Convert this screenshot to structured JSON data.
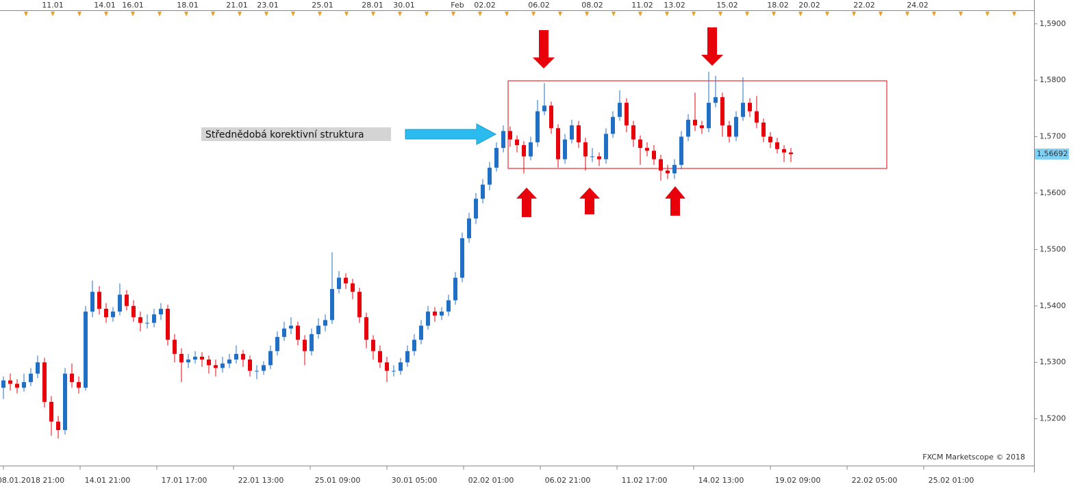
{
  "chart_data": {
    "type": "candlestick",
    "annotation": "Střednědobá korektivní struktura",
    "credit": "FXCM Marketscope © 2018",
    "top_labels": [
      "11.01",
      "14.01",
      "16.01",
      "18.01",
      "21.01",
      "23.01",
      "25.01",
      "28.01",
      "30.01",
      "Feb",
      "02.02",
      "06.02",
      "08.02",
      "11.02",
      "13.02",
      "15.02",
      "18.02",
      "20.02",
      "22.02",
      "24.02"
    ],
    "bottom_labels": [
      "08.01.2018 21:00",
      "14.01 21:00",
      "17.01 17:00",
      "22.01 13:00",
      "25.01 09:00",
      "30.01 05:00",
      "02.02 01:00",
      "06.02 21:00",
      "11.02 17:00",
      "14.02 13:00",
      "19.02 09:00",
      "22.02 05:00",
      "25.02 01:00"
    ],
    "ylim": [
      1.5117,
      1.5924
    ],
    "yticks": [
      {
        "value": 1.59,
        "label": "1,5900"
      },
      {
        "value": 1.58,
        "label": "1,5800"
      },
      {
        "value": 1.57,
        "label": "1,5700"
      },
      {
        "value": 1.56,
        "label": "1,5600"
      },
      {
        "value": 1.55,
        "label": "1,5500"
      },
      {
        "value": 1.54,
        "label": "1,5400"
      },
      {
        "value": 1.53,
        "label": "1,5300"
      },
      {
        "value": 1.52,
        "label": "1,5200"
      }
    ],
    "last_price": {
      "value": 1.56692,
      "label": "1,56692"
    },
    "up_color": "#1f6fc5",
    "down_color": "#e8000b",
    "candles": [
      [
        1.5255,
        1.5275,
        1.5235,
        1.5268
      ],
      [
        1.5268,
        1.528,
        1.525,
        1.5262
      ],
      [
        1.5262,
        1.527,
        1.5245,
        1.5255
      ],
      [
        1.5255,
        1.528,
        1.5248,
        1.5265
      ],
      [
        1.5265,
        1.529,
        1.5258,
        1.528
      ],
      [
        1.528,
        1.5312,
        1.5272,
        1.53
      ],
      [
        1.53,
        1.5308,
        1.522,
        1.523
      ],
      [
        1.523,
        1.524,
        1.517,
        1.5195
      ],
      [
        1.5195,
        1.5205,
        1.5165,
        1.518
      ],
      [
        1.518,
        1.529,
        1.5172,
        1.528
      ],
      [
        1.528,
        1.5298,
        1.5255,
        1.5265
      ],
      [
        1.5265,
        1.5275,
        1.5245,
        1.5255
      ],
      [
        1.5255,
        1.54,
        1.525,
        1.539
      ],
      [
        1.539,
        1.5445,
        1.538,
        1.5425
      ],
      [
        1.5425,
        1.5435,
        1.5385,
        1.5395
      ],
      [
        1.5395,
        1.5405,
        1.537,
        1.538
      ],
      [
        1.538,
        1.5398,
        1.5372,
        1.539
      ],
      [
        1.539,
        1.544,
        1.5383,
        1.542
      ],
      [
        1.542,
        1.5428,
        1.5392,
        1.54
      ],
      [
        1.54,
        1.541,
        1.5372,
        1.538
      ],
      [
        1.538,
        1.539,
        1.5355,
        1.537
      ],
      [
        1.537,
        1.5385,
        1.536,
        1.537
      ],
      [
        1.537,
        1.5395,
        1.5362,
        1.5385
      ],
      [
        1.5385,
        1.5405,
        1.5375,
        1.5395
      ],
      [
        1.5395,
        1.5402,
        1.533,
        1.534
      ],
      [
        1.534,
        1.535,
        1.53,
        1.5315
      ],
      [
        1.5315,
        1.5325,
        1.5265,
        1.53
      ],
      [
        1.53,
        1.5315,
        1.529,
        1.5305
      ],
      [
        1.5305,
        1.532,
        1.5298,
        1.531
      ],
      [
        1.531,
        1.5318,
        1.5292,
        1.5305
      ],
      [
        1.5305,
        1.5312,
        1.528,
        1.5295
      ],
      [
        1.5295,
        1.5305,
        1.5275,
        1.529
      ],
      [
        1.529,
        1.531,
        1.5282,
        1.5298
      ],
      [
        1.5298,
        1.5315,
        1.529,
        1.5305
      ],
      [
        1.5305,
        1.533,
        1.5298,
        1.5315
      ],
      [
        1.5315,
        1.5322,
        1.5292,
        1.5305
      ],
      [
        1.5305,
        1.5312,
        1.5275,
        1.5285
      ],
      [
        1.5285,
        1.5295,
        1.527,
        1.5285
      ],
      [
        1.5285,
        1.5302,
        1.5278,
        1.5295
      ],
      [
        1.5295,
        1.533,
        1.5288,
        1.532
      ],
      [
        1.532,
        1.5355,
        1.5312,
        1.5345
      ],
      [
        1.5345,
        1.5372,
        1.5338,
        1.536
      ],
      [
        1.536,
        1.538,
        1.535,
        1.5365
      ],
      [
        1.5365,
        1.5372,
        1.533,
        1.534
      ],
      [
        1.534,
        1.5348,
        1.5295,
        1.532
      ],
      [
        1.532,
        1.536,
        1.5312,
        1.535
      ],
      [
        1.535,
        1.5378,
        1.5342,
        1.5365
      ],
      [
        1.5365,
        1.5385,
        1.5355,
        1.5375
      ],
      [
        1.5375,
        1.5495,
        1.5368,
        1.543
      ],
      [
        1.543,
        1.5462,
        1.5422,
        1.545
      ],
      [
        1.545,
        1.5458,
        1.543,
        1.544
      ],
      [
        1.544,
        1.5448,
        1.5412,
        1.5425
      ],
      [
        1.5425,
        1.5432,
        1.537,
        1.538
      ],
      [
        1.538,
        1.5388,
        1.5325,
        1.534
      ],
      [
        1.534,
        1.5348,
        1.5305,
        1.532
      ],
      [
        1.532,
        1.533,
        1.529,
        1.53
      ],
      [
        1.53,
        1.531,
        1.5265,
        1.5285
      ],
      [
        1.5285,
        1.5295,
        1.5275,
        1.5285
      ],
      [
        1.5285,
        1.5308,
        1.5278,
        1.53
      ],
      [
        1.53,
        1.533,
        1.5292,
        1.532
      ],
      [
        1.532,
        1.535,
        1.5312,
        1.534
      ],
      [
        1.534,
        1.5375,
        1.5332,
        1.5365
      ],
      [
        1.5365,
        1.54,
        1.5358,
        1.539
      ],
      [
        1.539,
        1.5398,
        1.5372,
        1.5383
      ],
      [
        1.5383,
        1.5398,
        1.5375,
        1.539
      ],
      [
        1.539,
        1.542,
        1.5382,
        1.541
      ],
      [
        1.541,
        1.546,
        1.5402,
        1.545
      ],
      [
        1.545,
        1.553,
        1.5442,
        1.552
      ],
      [
        1.552,
        1.5565,
        1.5512,
        1.5555
      ],
      [
        1.5555,
        1.56,
        1.5545,
        1.559
      ],
      [
        1.559,
        1.5625,
        1.5582,
        1.5615
      ],
      [
        1.5615,
        1.5655,
        1.5605,
        1.5645
      ],
      [
        1.5645,
        1.569,
        1.5638,
        1.568
      ],
      [
        1.568,
        1.572,
        1.5672,
        1.571
      ],
      [
        1.571,
        1.5718,
        1.5682,
        1.5695
      ],
      [
        1.5695,
        1.5702,
        1.5672,
        1.5685
      ],
      [
        1.5685,
        1.5692,
        1.5635,
        1.5665
      ],
      [
        1.5665,
        1.57,
        1.5658,
        1.569
      ],
      [
        1.569,
        1.5765,
        1.5682,
        1.5745
      ],
      [
        1.5745,
        1.5795,
        1.5738,
        1.5755
      ],
      [
        1.5755,
        1.5762,
        1.5705,
        1.5715
      ],
      [
        1.5715,
        1.5722,
        1.5645,
        1.566
      ],
      [
        1.566,
        1.5705,
        1.5652,
        1.5695
      ],
      [
        1.5695,
        1.573,
        1.5688,
        1.572
      ],
      [
        1.572,
        1.5728,
        1.568,
        1.569
      ],
      [
        1.569,
        1.5698,
        1.564,
        1.5665
      ],
      [
        1.5665,
        1.568,
        1.5655,
        1.5665
      ],
      [
        1.5665,
        1.5672,
        1.5648,
        1.566
      ],
      [
        1.566,
        1.5715,
        1.5652,
        1.5705
      ],
      [
        1.5705,
        1.5745,
        1.5698,
        1.5735
      ],
      [
        1.5735,
        1.5782,
        1.5728,
        1.576
      ],
      [
        1.576,
        1.5768,
        1.5708,
        1.572
      ],
      [
        1.572,
        1.5728,
        1.5682,
        1.5695
      ],
      [
        1.5695,
        1.5702,
        1.565,
        1.568
      ],
      [
        1.568,
        1.569,
        1.5665,
        1.5675
      ],
      [
        1.5675,
        1.5685,
        1.565,
        1.566
      ],
      [
        1.566,
        1.5668,
        1.5622,
        1.564
      ],
      [
        1.564,
        1.565,
        1.5625,
        1.5635
      ],
      [
        1.5635,
        1.566,
        1.5625,
        1.565
      ],
      [
        1.565,
        1.571,
        1.5642,
        1.57
      ],
      [
        1.57,
        1.574,
        1.5692,
        1.573
      ],
      [
        1.573,
        1.5778,
        1.571,
        1.572
      ],
      [
        1.572,
        1.5728,
        1.5705,
        1.5715
      ],
      [
        1.5715,
        1.5815,
        1.5708,
        1.576
      ],
      [
        1.576,
        1.5808,
        1.5752,
        1.577
      ],
      [
        1.577,
        1.5778,
        1.57,
        1.572
      ],
      [
        1.572,
        1.5728,
        1.569,
        1.57
      ],
      [
        1.57,
        1.5745,
        1.5692,
        1.5735
      ],
      [
        1.5735,
        1.5805,
        1.5728,
        1.576
      ],
      [
        1.576,
        1.5768,
        1.5735,
        1.5745
      ],
      [
        1.5745,
        1.5772,
        1.5715,
        1.5725
      ],
      [
        1.5725,
        1.5732,
        1.569,
        1.57
      ],
      [
        1.57,
        1.5708,
        1.568,
        1.569
      ],
      [
        1.569,
        1.5698,
        1.567,
        1.5678
      ],
      [
        1.5678,
        1.5685,
        1.5655,
        1.5672
      ],
      [
        1.5672,
        1.568,
        1.5655,
        1.5669
      ]
    ]
  }
}
